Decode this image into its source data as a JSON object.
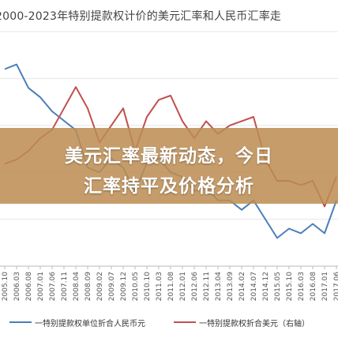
{
  "chart_data": {
    "type": "line",
    "title": "2000-2023年特别提款权计价的美元汇率和人民币汇率走",
    "xlabel": "",
    "ylabel": "",
    "x": [
      "2005.10",
      "2006.03",
      "2006.08",
      "2007.01",
      "2007.06",
      "2007.11",
      "2008.04",
      "2008.09",
      "2009.02",
      "2009.07",
      "2009.12",
      "2010.05",
      "2010.10",
      "2011.03",
      "2011.08",
      "2012.01",
      "2012.06",
      "2012.11",
      "2013.04",
      "2013.09",
      "2014.02",
      "2014.07",
      "2014.12",
      "2015.05",
      "2015.10",
      "2016.03",
      "2016.08",
      "2017.01",
      "2017.06"
    ],
    "series": [
      {
        "name": "一特别提款权单位折合人民币元",
        "color": "#4a7ebb",
        "axis": "left",
        "values": [
          12.2,
          12.3,
          11.8,
          11.6,
          11.3,
          11.1,
          10.9,
          10.1,
          10.0,
          10.3,
          10.1,
          9.6,
          10.2,
          10.3,
          10.0,
          9.9,
          9.6,
          9.7,
          9.4,
          9.4,
          9.2,
          9.4,
          9.0,
          8.6,
          8.8,
          8.7,
          8.9,
          8.7,
          9.4
        ]
      },
      {
        "name": "一特别提款权折合美元（右轴）",
        "color": "#c0504d",
        "axis": "right",
        "values": [
          1.44,
          1.45,
          1.47,
          1.5,
          1.52,
          1.57,
          1.62,
          1.57,
          1.49,
          1.53,
          1.57,
          1.47,
          1.55,
          1.59,
          1.6,
          1.54,
          1.5,
          1.54,
          1.51,
          1.53,
          1.54,
          1.55,
          1.45,
          1.4,
          1.4,
          1.39,
          1.4,
          1.34,
          1.41
        ]
      }
    ],
    "ylim_left": [
      8.0,
      13.0
    ],
    "ylim_right": [
      1.2,
      1.75
    ],
    "grid": true,
    "legend_position": "bottom"
  },
  "overlay": {
    "headline_line1": "美元汇率最新动态，今日",
    "headline_line2": "汇率持平及价格分析"
  }
}
